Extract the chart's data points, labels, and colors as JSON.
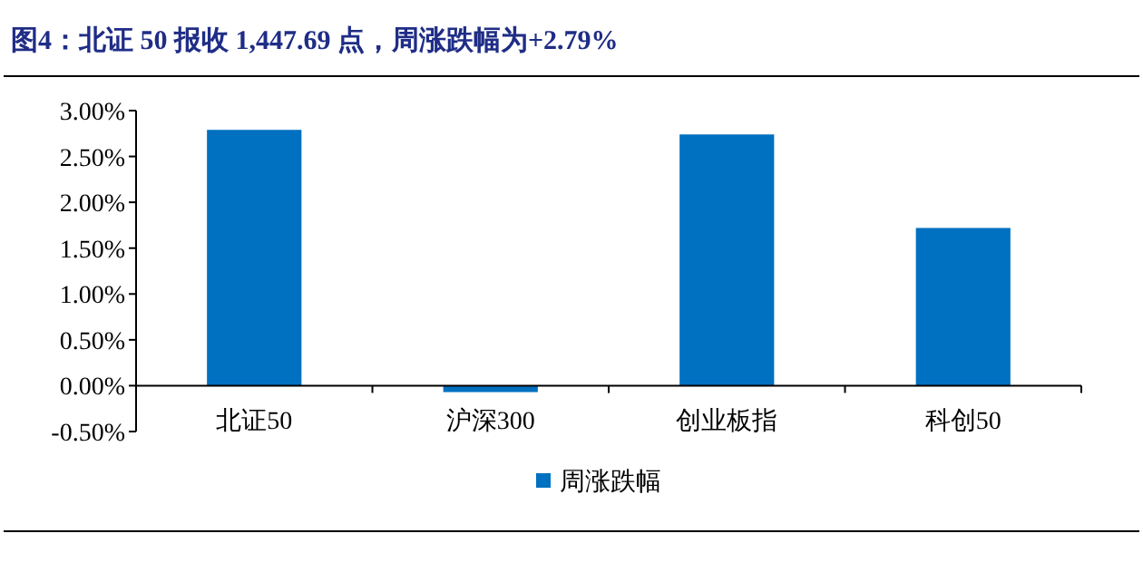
{
  "chart_data": {
    "type": "bar",
    "title": "图4：北证 50 报收 1,447.69 点，周涨跌幅为+2.79%",
    "categories": [
      "北证50",
      "沪深300",
      "创业板指",
      "科创50"
    ],
    "series": [
      {
        "name": "周涨跌幅",
        "color": "#0070c0",
        "values": [
          2.79,
          -0.07,
          2.74,
          1.72
        ]
      }
    ],
    "ylim": [
      -0.5,
      3.0
    ],
    "yticks": [
      {
        "value": -0.5,
        "label": "-0.50%"
      },
      {
        "value": 0,
        "label": "0.00%"
      },
      {
        "value": 0.5,
        "label": "0.50%"
      },
      {
        "value": 1.0,
        "label": "1.00%"
      },
      {
        "value": 1.5,
        "label": "1.50%"
      },
      {
        "value": 2.0,
        "label": "2.00%"
      },
      {
        "value": 2.5,
        "label": "2.50%"
      },
      {
        "value": 3.0,
        "label": "3.00%"
      }
    ],
    "grid": false,
    "legend": "bottom"
  }
}
